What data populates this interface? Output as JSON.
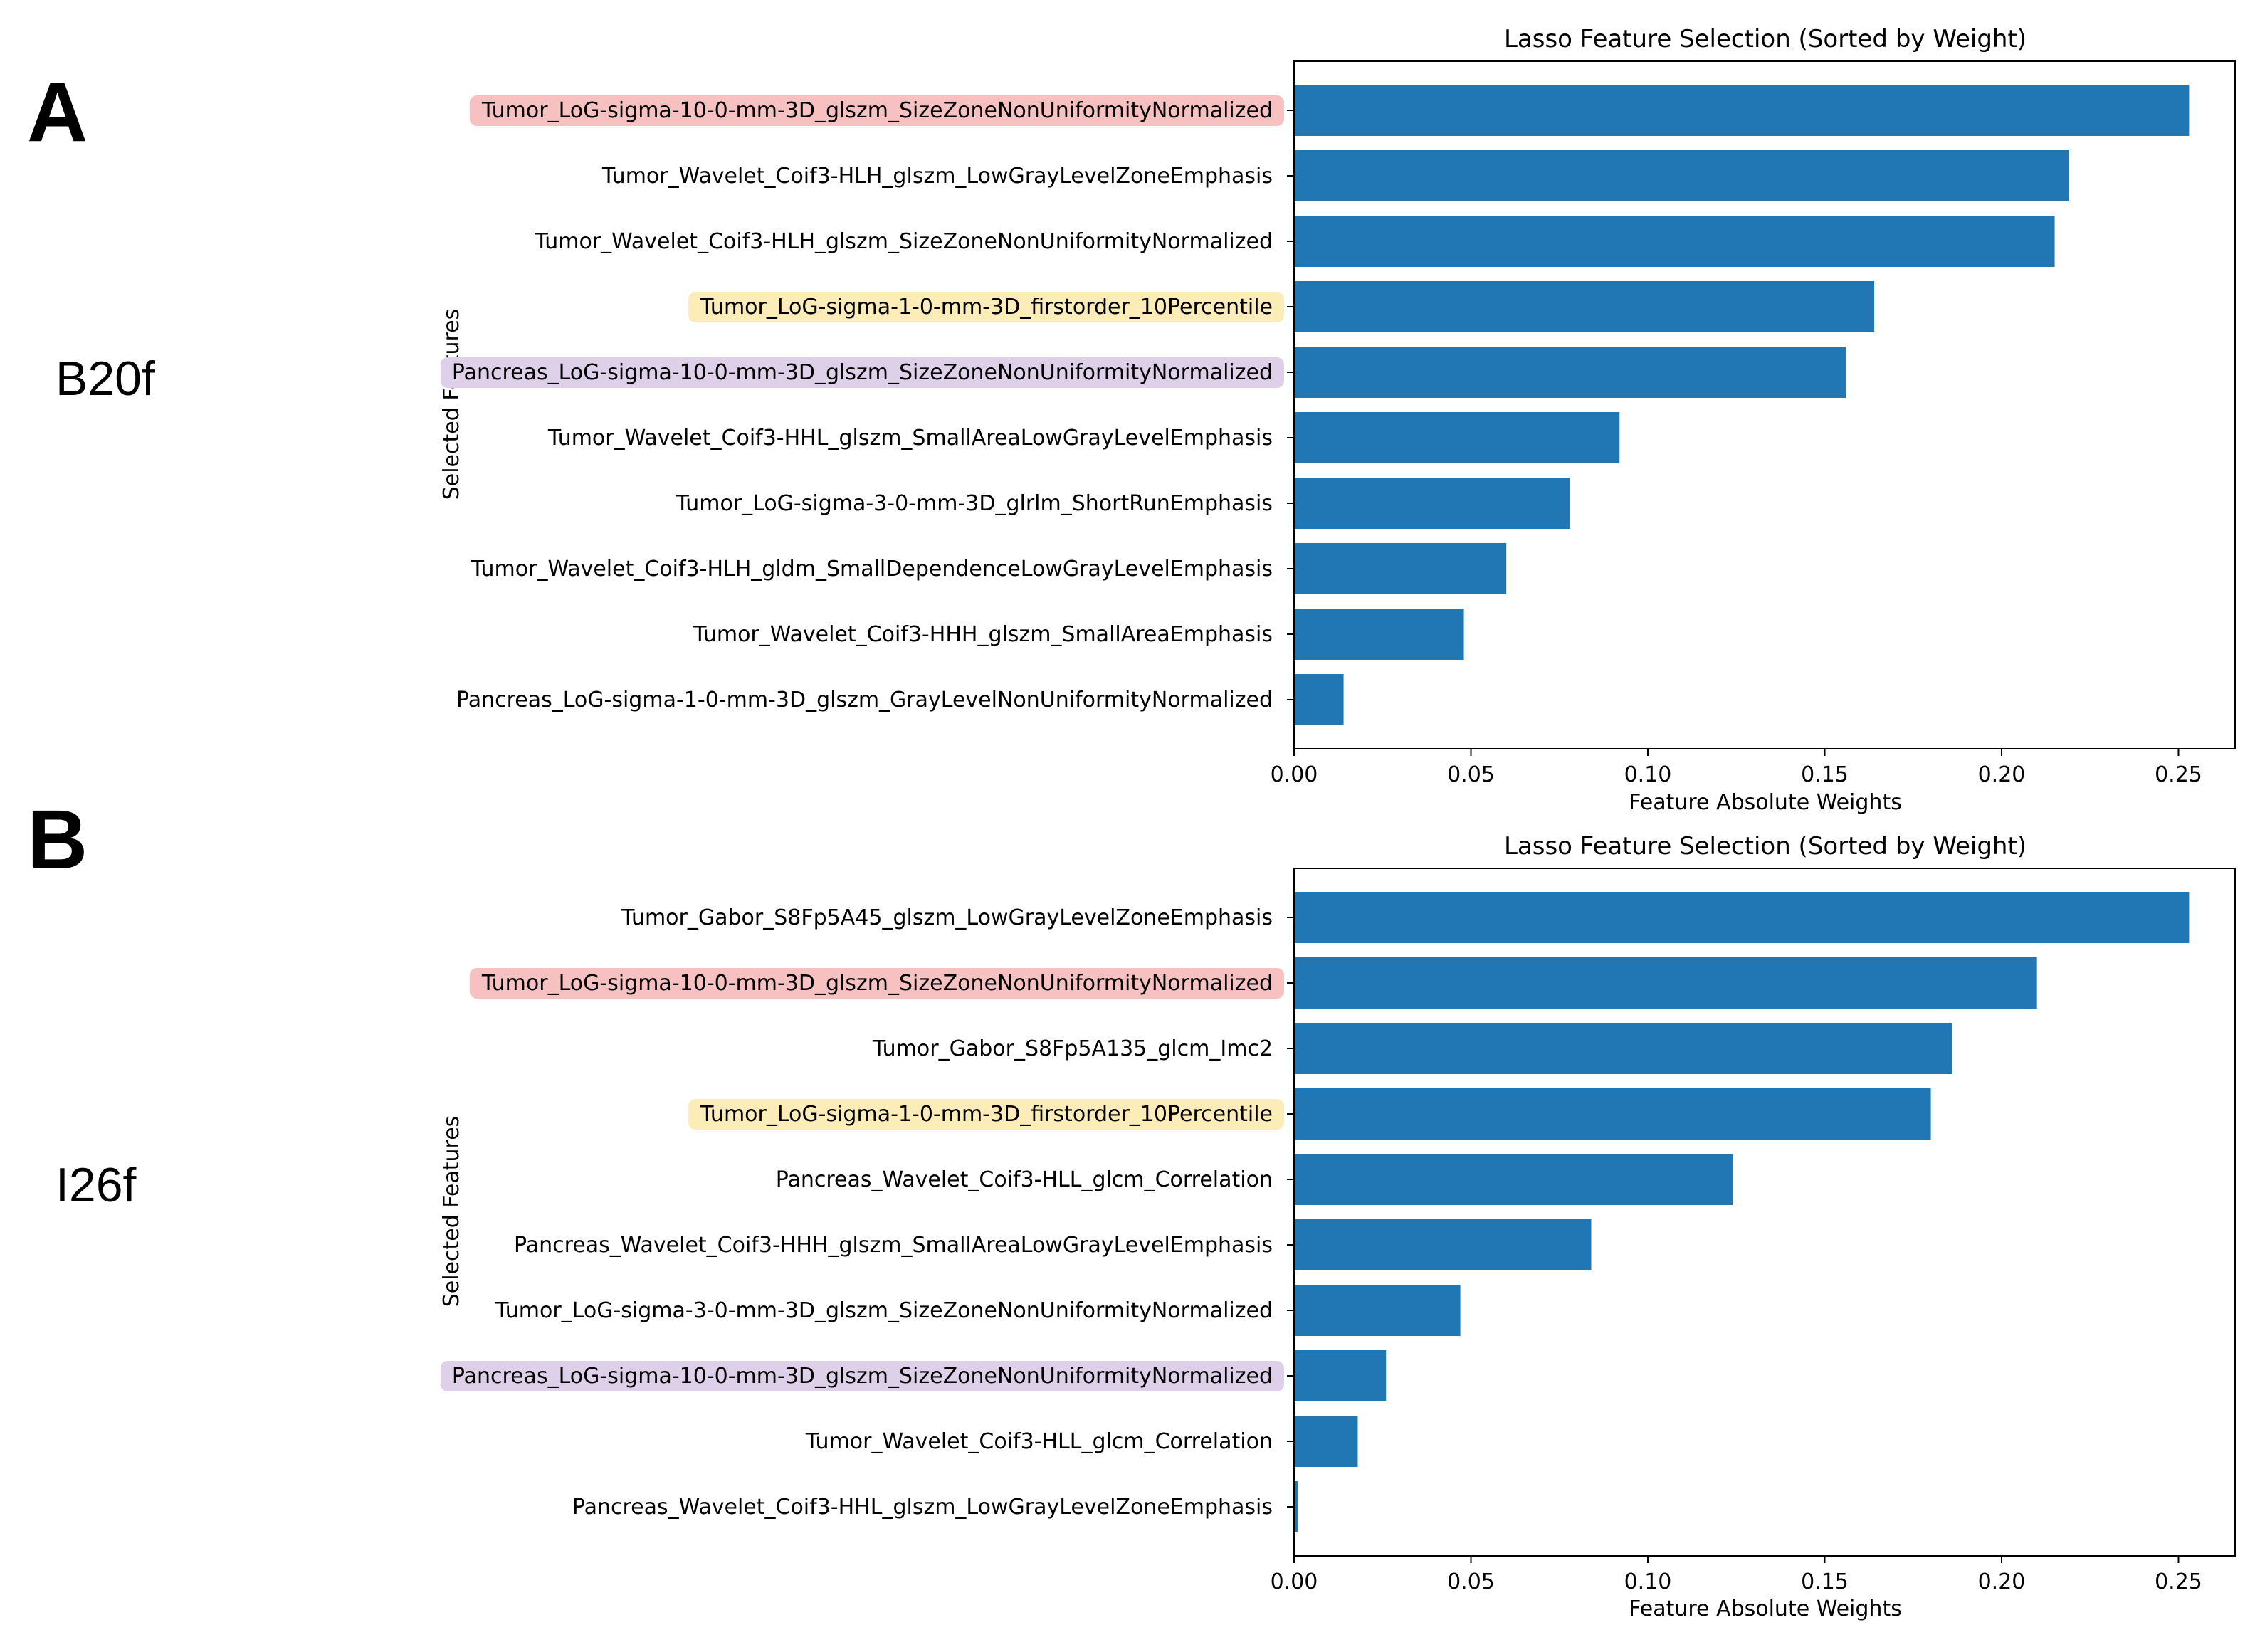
{
  "panels": [
    {
      "letter": "A",
      "name": "B20f"
    },
    {
      "letter": "B",
      "name": "I26f"
    }
  ],
  "highlight_colors": {
    "red": "#f7c1c1",
    "yellow": "#fcecb8",
    "purple": "#ddd0e8"
  },
  "bar_color": "#2077b4",
  "chart_data": [
    {
      "type": "bar",
      "orientation": "horizontal",
      "title": "Lasso Feature Selection (Sorted by Weight)",
      "xlabel": "Feature Absolute Weights",
      "ylabel": "Selected Features",
      "xlim": [
        0,
        0.266
      ],
      "xticks": [
        0.0,
        0.05,
        0.1,
        0.15,
        0.2,
        0.25
      ],
      "xtick_labels": [
        "0.00",
        "0.05",
        "0.10",
        "0.15",
        "0.20",
        "0.25"
      ],
      "categories": [
        "Tumor_LoG-sigma-10-0-mm-3D_glszm_SizeZoneNonUniformityNormalized",
        "Tumor_Wavelet_Coif3-HLH_glszm_LowGrayLevelZoneEmphasis",
        "Tumor_Wavelet_Coif3-HLH_glszm_SizeZoneNonUniformityNormalized",
        "Tumor_LoG-sigma-1-0-mm-3D_firstorder_10Percentile",
        "Pancreas_LoG-sigma-10-0-mm-3D_glszm_SizeZoneNonUniformityNormalized",
        "Tumor_Wavelet_Coif3-HHL_glszm_SmallAreaLowGrayLevelEmphasis",
        "Tumor_LoG-sigma-3-0-mm-3D_glrlm_ShortRunEmphasis",
        "Tumor_Wavelet_Coif3-HLH_gldm_SmallDependenceLowGrayLevelEmphasis",
        "Tumor_Wavelet_Coif3-HHH_glszm_SmallAreaEmphasis",
        "Pancreas_LoG-sigma-1-0-mm-3D_glszm_GrayLevelNonUniformityNormalized"
      ],
      "values": [
        0.253,
        0.219,
        0.215,
        0.164,
        0.156,
        0.092,
        0.078,
        0.06,
        0.048,
        0.014
      ],
      "highlights": [
        "red",
        "",
        "",
        "yellow",
        "purple",
        "",
        "",
        "",
        "",
        ""
      ]
    },
    {
      "type": "bar",
      "orientation": "horizontal",
      "title": "Lasso Feature Selection (Sorted by Weight)",
      "xlabel": "Feature Absolute Weights",
      "ylabel": "Selected Features",
      "xlim": [
        0,
        0.266
      ],
      "xticks": [
        0.0,
        0.05,
        0.1,
        0.15,
        0.2,
        0.25
      ],
      "xtick_labels": [
        "0.00",
        "0.05",
        "0.10",
        "0.15",
        "0.20",
        "0.25"
      ],
      "categories": [
        "Tumor_Gabor_S8Fp5A45_glszm_LowGrayLevelZoneEmphasis",
        "Tumor_LoG-sigma-10-0-mm-3D_glszm_SizeZoneNonUniformityNormalized",
        "Tumor_Gabor_S8Fp5A135_glcm_Imc2",
        "Tumor_LoG-sigma-1-0-mm-3D_firstorder_10Percentile",
        "Pancreas_Wavelet_Coif3-HLL_glcm_Correlation",
        "Pancreas_Wavelet_Coif3-HHH_glszm_SmallAreaLowGrayLevelEmphasis",
        "Tumor_LoG-sigma-3-0-mm-3D_glszm_SizeZoneNonUniformityNormalized",
        "Pancreas_LoG-sigma-10-0-mm-3D_glszm_SizeZoneNonUniformityNormalized",
        "Tumor_Wavelet_Coif3-HLL_glcm_Correlation",
        "Pancreas_Wavelet_Coif3-HHL_glszm_LowGrayLevelZoneEmphasis"
      ],
      "values": [
        0.253,
        0.21,
        0.186,
        0.18,
        0.124,
        0.084,
        0.047,
        0.026,
        0.018,
        0.001
      ],
      "highlights": [
        "",
        "red",
        "",
        "yellow",
        "",
        "",
        "",
        "purple",
        "",
        ""
      ]
    }
  ]
}
